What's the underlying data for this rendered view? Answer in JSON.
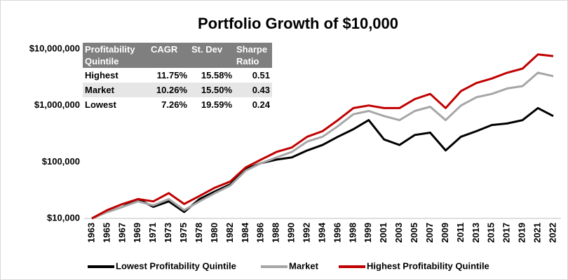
{
  "chart_data": {
    "type": "line",
    "title": "Portfolio Growth of $10,000",
    "categories": [
      "1963",
      "1965",
      "1967",
      "1969",
      "1971",
      "1973",
      "1975",
      "1978",
      "1980",
      "1982",
      "1984",
      "1986",
      "1988",
      "1990",
      "1992",
      "1994",
      "1996",
      "1998",
      "1999",
      "2001",
      "2003",
      "2005",
      "2007",
      "2009",
      "2011",
      "2013",
      "2015",
      "2017",
      "2019",
      "2021",
      "2022"
    ],
    "series": [
      {
        "name": "Lowest Profitability Quintile",
        "color": "#000000",
        "values": [
          10000,
          13000,
          16000,
          22000,
          16000,
          20000,
          13000,
          22000,
          30000,
          40000,
          75000,
          95000,
          110000,
          120000,
          160000,
          200000,
          280000,
          380000,
          550000,
          250000,
          200000,
          300000,
          330000,
          160000,
          280000,
          350000,
          450000,
          480000,
          550000,
          900000,
          650000
        ]
      },
      {
        "name": "Market",
        "color": "#a6a6a6",
        "values": [
          10000,
          13000,
          16000,
          20000,
          17000,
          22000,
          14000,
          20000,
          28000,
          38000,
          70000,
          95000,
          120000,
          150000,
          230000,
          280000,
          430000,
          700000,
          800000,
          650000,
          550000,
          800000,
          950000,
          550000,
          1000000,
          1400000,
          1600000,
          2000000,
          2200000,
          3800000,
          3300000
        ]
      },
      {
        "name": "Highest Profitability Quintile",
        "color": "#c00000",
        "values": [
          10000,
          14000,
          18000,
          22000,
          20000,
          28000,
          18000,
          25000,
          35000,
          45000,
          80000,
          110000,
          150000,
          180000,
          280000,
          350000,
          550000,
          900000,
          1000000,
          900000,
          900000,
          1300000,
          1600000,
          900000,
          1800000,
          2500000,
          3000000,
          3800000,
          4500000,
          8000000,
          7500000
        ]
      }
    ],
    "log_scale": true,
    "ylim": [
      10000,
      10000000
    ],
    "yticks": [
      {
        "value": 10000,
        "label": "$10,000"
      },
      {
        "value": 100000,
        "label": "$100,000"
      },
      {
        "value": 1000000,
        "label": "$1,000,000"
      },
      {
        "value": 10000000,
        "label": "$10,000,000"
      }
    ],
    "grid": false,
    "legend": "bottom",
    "table": {
      "columns": [
        "Profitability Quintile",
        "CAGR",
        "St. Dev",
        "Sharpe Ratio"
      ],
      "rows": [
        [
          "Highest",
          "11.75%",
          "15.58%",
          "0.51"
        ],
        [
          "Market",
          "10.26%",
          "15.50%",
          "0.43"
        ],
        [
          "Lowest",
          "7.26%",
          "19.59%",
          "0.24"
        ]
      ]
    }
  }
}
